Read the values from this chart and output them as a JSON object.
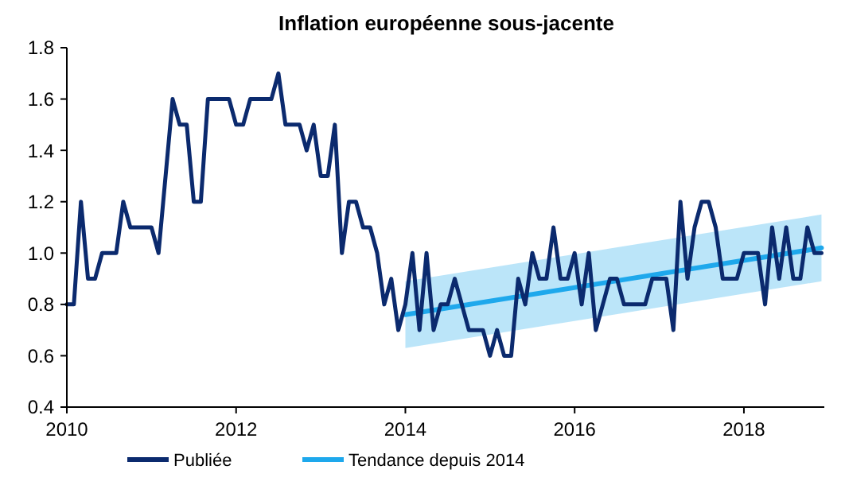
{
  "chart_data": {
    "type": "line",
    "title": "Inflation européenne sous-jacente",
    "x": [
      2010,
      2010.0833,
      2010.1667,
      2010.25,
      2010.3333,
      2010.4167,
      2010.5,
      2010.5833,
      2010.6667,
      2010.75,
      2010.8333,
      2010.9167,
      2011,
      2011.0833,
      2011.1667,
      2011.25,
      2011.3333,
      2011.4167,
      2011.5,
      2011.5833,
      2011.6667,
      2011.75,
      2011.8333,
      2011.9167,
      2012,
      2012.0833,
      2012.1667,
      2012.25,
      2012.3333,
      2012.4167,
      2012.5,
      2012.5833,
      2012.6667,
      2012.75,
      2012.8333,
      2012.9167,
      2013,
      2013.0833,
      2013.1667,
      2013.25,
      2013.3333,
      2013.4167,
      2013.5,
      2013.5833,
      2013.6667,
      2013.75,
      2013.8333,
      2013.9167,
      2014,
      2014.0833,
      2014.1667,
      2014.25,
      2014.3333,
      2014.4167,
      2014.5,
      2014.5833,
      2014.6667,
      2014.75,
      2014.8333,
      2014.9167,
      2015,
      2015.0833,
      2015.1667,
      2015.25,
      2015.3333,
      2015.4167,
      2015.5,
      2015.5833,
      2015.6667,
      2015.75,
      2015.8333,
      2015.9167,
      2016,
      2016.0833,
      2016.1667,
      2016.25,
      2016.3333,
      2016.4167,
      2016.5,
      2016.5833,
      2016.6667,
      2016.75,
      2016.8333,
      2016.9167,
      2017,
      2017.0833,
      2017.1667,
      2017.25,
      2017.3333,
      2017.4167,
      2017.5,
      2017.5833,
      2017.6667,
      2017.75,
      2017.8333,
      2017.9167,
      2018,
      2018.0833,
      2018.1667,
      2018.25,
      2018.3333,
      2018.4167,
      2018.5,
      2018.5833,
      2018.6667,
      2018.75,
      2018.8333,
      2018.9167
    ],
    "series": [
      {
        "name": "Publiée",
        "color": "#0b2a6e",
        "values": [
          0.8,
          0.8,
          1.2,
          0.9,
          0.9,
          1.0,
          1.0,
          1.0,
          1.2,
          1.1,
          1.1,
          1.1,
          1.1,
          1.0,
          1.3,
          1.6,
          1.5,
          1.5,
          1.2,
          1.2,
          1.6,
          1.6,
          1.6,
          1.6,
          1.5,
          1.5,
          1.6,
          1.6,
          1.6,
          1.6,
          1.7,
          1.5,
          1.5,
          1.5,
          1.4,
          1.5,
          1.3,
          1.3,
          1.5,
          1.0,
          1.2,
          1.2,
          1.1,
          1.1,
          1.0,
          0.8,
          0.9,
          0.7,
          0.8,
          1.0,
          0.7,
          1.0,
          0.7,
          0.8,
          0.8,
          0.9,
          0.8,
          0.7,
          0.7,
          0.7,
          0.6,
          0.7,
          0.6,
          0.6,
          0.9,
          0.8,
          1.0,
          0.9,
          0.9,
          1.1,
          0.9,
          0.9,
          1.0,
          0.8,
          1.0,
          0.7,
          0.8,
          0.9,
          0.9,
          0.8,
          0.8,
          0.8,
          0.8,
          0.9,
          0.9,
          0.9,
          0.7,
          1.2,
          0.9,
          1.1,
          1.2,
          1.2,
          1.1,
          0.9,
          0.9,
          0.9,
          1.0,
          1.0,
          1.0,
          0.8,
          1.1,
          0.9,
          1.1,
          0.9,
          0.9,
          1.1,
          1.0,
          1.0
        ]
      },
      {
        "name": "Tendance depuis 2014",
        "color": "#1ea8ec",
        "x": [
          2014,
          2018.9167
        ],
        "values": [
          0.76,
          1.02
        ],
        "lower": [
          0.63,
          0.89
        ],
        "upper": [
          0.89,
          1.15
        ]
      }
    ],
    "xlim": [
      2010,
      2018.95
    ],
    "xticks": [
      2010,
      2012,
      2014,
      2016,
      2018
    ],
    "ylim": [
      0.4,
      1.8
    ],
    "yticks": [
      {
        "value": 0.4,
        "label": "0.4"
      },
      {
        "value": 0.6,
        "label": "0.6"
      },
      {
        "value": 0.8,
        "label": "0.8"
      },
      {
        "value": 1.0,
        "label": "1.0"
      },
      {
        "value": 1.2,
        "label": "1.2"
      },
      {
        "value": 1.4,
        "label": "1.4"
      },
      {
        "value": 1.6,
        "label": "1.6"
      },
      {
        "value": 1.8,
        "label": "1.8"
      }
    ],
    "grid": false,
    "legend": "bottom"
  }
}
